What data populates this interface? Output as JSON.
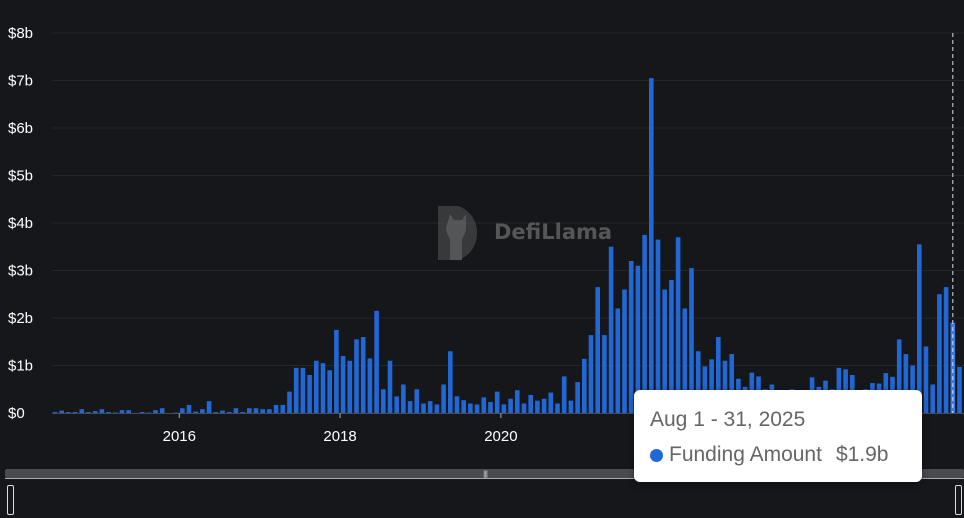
{
  "chart_data": {
    "type": "bar",
    "title": "",
    "xlabel": "",
    "ylabel": "",
    "series": [
      {
        "name": "Funding Amount",
        "color": "#2168d6"
      }
    ],
    "x_start": "2014-06",
    "x_interval": "month",
    "x_end": "2025-09",
    "values": [
      0.02,
      0.05,
      0.02,
      0.02,
      0.08,
      0.02,
      0.04,
      0.08,
      0.02,
      0.01,
      0.06,
      0.06,
      0.0,
      0.02,
      0.01,
      0.06,
      0.1,
      0.0,
      0.01,
      0.1,
      0.17,
      0.03,
      0.08,
      0.25,
      0.02,
      0.05,
      0.02,
      0.1,
      0.02,
      0.1,
      0.1,
      0.08,
      0.08,
      0.17,
      0.17,
      0.45,
      0.95,
      0.95,
      0.8,
      1.1,
      1.05,
      0.9,
      1.75,
      1.2,
      1.1,
      1.55,
      1.6,
      1.15,
      2.15,
      0.5,
      1.1,
      0.35,
      0.6,
      0.25,
      0.5,
      0.2,
      0.25,
      0.18,
      0.6,
      1.3,
      0.35,
      0.27,
      0.2,
      0.18,
      0.33,
      0.23,
      0.45,
      0.18,
      0.3,
      0.48,
      0.2,
      0.38,
      0.26,
      0.3,
      0.43,
      0.2,
      0.77,
      0.26,
      0.65,
      1.14,
      1.64,
      2.65,
      1.64,
      3.5,
      2.2,
      2.6,
      3.2,
      3.1,
      3.75,
      7.05,
      3.65,
      2.6,
      2.8,
      3.7,
      2.2,
      3.05,
      1.3,
      0.98,
      1.13,
      1.6,
      1.1,
      1.24,
      0.72,
      0.55,
      0.85,
      0.77,
      0.5,
      0.6,
      0.4,
      0.45,
      0.5,
      0.4,
      0.45,
      0.75,
      0.55,
      0.68,
      0.5,
      0.95,
      0.92,
      0.8,
      0.4,
      0.5,
      0.63,
      0.62,
      0.84,
      0.76,
      1.55,
      1.24,
      1.0,
      3.55,
      1.4,
      0.6,
      2.5,
      2.65,
      1.9,
      0.97
    ],
    "ylim": [
      0,
      8
    ],
    "y_ticks": [
      "$0",
      "$1b",
      "$2b",
      "$3b",
      "$4b",
      "$5b",
      "$6b",
      "$7b",
      "$8b"
    ],
    "x_ticks": [
      {
        "year": 2016,
        "label": "2016"
      },
      {
        "year": 2018,
        "label": "2018"
      },
      {
        "year": 2020,
        "label": "2020"
      }
    ],
    "grid": true,
    "legend": "none"
  },
  "tooltip": {
    "title": "Aug 1 - 31, 2025",
    "series_name": "Funding Amount",
    "value": "$1.9b",
    "highlight_month": "2025-08"
  },
  "watermark": {
    "text": "DefiLlama"
  },
  "zoom_slider": {
    "grip": "|||",
    "range": [
      0,
      100
    ]
  }
}
